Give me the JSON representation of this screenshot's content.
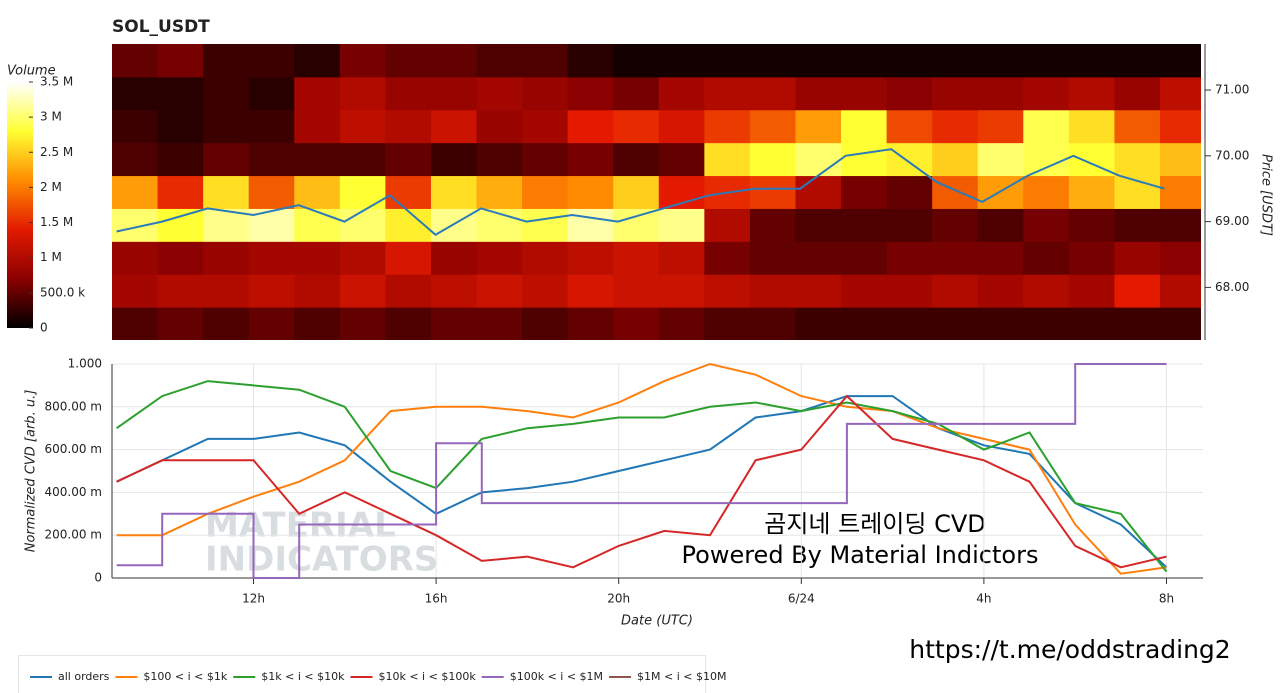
{
  "chart_data": [
    {
      "type": "heatmap",
      "title": "SOL_USDT",
      "colorbar_title": "Volume",
      "y_label": "Price [USDT]",
      "xlim": [
        8.9,
        32.8
      ],
      "ylim": [
        67.2,
        71.7
      ],
      "yticks": [
        {
          "value": 68,
          "label": "68.00"
        },
        {
          "value": 69,
          "label": "69.00"
        },
        {
          "value": 70,
          "label": "70.00"
        },
        {
          "value": 71,
          "label": "71.00"
        }
      ],
      "colorbar_lim": [
        0,
        3.5
      ],
      "colorbar_ticks": [
        0,
        {
          "value": 0.5,
          "label": "500.0 k"
        },
        {
          "value": 1,
          "label": "1 M"
        },
        {
          "value": 1.5,
          "label": "1.5 M"
        },
        {
          "value": 2,
          "label": "2 M"
        },
        {
          "value": 2.5,
          "label": "2.5 M"
        },
        {
          "value": 3,
          "label": "3 M"
        },
        {
          "value": 3.5,
          "label": "3.5 M"
        }
      ],
      "colormap": [
        "#000000",
        "#8b0000",
        "#e31a00",
        "#ff8c00",
        "#ffff33",
        "#ffffff"
      ],
      "x_bins": [
        8.9,
        9.9,
        10.9,
        11.9,
        12.9,
        13.9,
        14.9,
        15.9,
        16.9,
        17.9,
        18.9,
        19.9,
        20.9,
        21.9,
        22.9,
        23.9,
        24.9,
        25.9,
        26.9,
        27.9,
        28.9,
        29.9,
        30.9,
        31.9,
        32.8
      ],
      "y_bins": [
        67.2,
        67.7,
        68.2,
        68.7,
        69.2,
        69.7,
        70.2,
        70.7,
        71.2,
        71.7
      ],
      "values": [
        [
          0.4,
          0.5,
          0.4,
          0.5,
          0.4,
          0.5,
          0.4,
          0.5,
          0.5,
          0.4,
          0.5,
          0.6,
          0.5,
          0.4,
          0.4,
          0.3,
          0.3,
          0.3,
          0.3,
          0.3,
          0.3,
          0.3,
          0.3,
          0.3
        ],
        [
          0.9,
          1.0,
          1.0,
          1.1,
          1.0,
          1.2,
          1.0,
          1.1,
          1.2,
          1.1,
          1.3,
          1.2,
          1.2,
          1.1,
          1.0,
          1.0,
          0.9,
          0.9,
          1.0,
          0.9,
          1.0,
          0.9,
          1.4,
          1.0
        ],
        [
          0.8,
          0.7,
          0.8,
          0.9,
          0.9,
          1.0,
          1.3,
          0.8,
          0.9,
          1.0,
          1.1,
          1.2,
          1.1,
          0.6,
          0.5,
          0.5,
          0.5,
          0.6,
          0.6,
          0.6,
          0.5,
          0.6,
          0.8,
          0.7
        ],
        [
          3.0,
          2.8,
          3.1,
          3.2,
          2.9,
          3.0,
          2.7,
          3.1,
          3.0,
          2.9,
          3.2,
          3.0,
          3.1,
          1.0,
          0.5,
          0.4,
          0.4,
          0.4,
          0.5,
          0.4,
          0.6,
          0.5,
          0.4,
          0.4
        ],
        [
          2.2,
          1.5,
          2.6,
          1.8,
          2.4,
          2.8,
          1.6,
          2.6,
          2.3,
          2.0,
          2.1,
          2.5,
          1.4,
          1.5,
          1.6,
          1.0,
          0.6,
          0.5,
          1.8,
          2.2,
          2.0,
          2.3,
          2.6,
          2.0
        ],
        [
          0.4,
          0.3,
          0.5,
          0.4,
          0.4,
          0.4,
          0.5,
          0.3,
          0.4,
          0.5,
          0.6,
          0.4,
          0.5,
          2.6,
          2.8,
          3.0,
          2.8,
          2.7,
          2.5,
          3.0,
          2.9,
          2.8,
          2.6,
          2.4
        ],
        [
          0.3,
          0.2,
          0.3,
          0.3,
          0.9,
          1.1,
          1.0,
          1.2,
          0.8,
          0.9,
          1.4,
          1.5,
          1.3,
          1.6,
          1.8,
          2.2,
          2.8,
          1.7,
          1.5,
          1.6,
          2.9,
          2.6,
          1.8,
          1.5
        ],
        [
          0.2,
          0.2,
          0.3,
          0.2,
          0.9,
          1.0,
          0.8,
          0.8,
          0.9,
          0.8,
          0.7,
          0.6,
          0.9,
          1.0,
          1.0,
          0.8,
          0.8,
          0.7,
          0.8,
          0.8,
          0.9,
          1.0,
          0.8,
          1.1
        ],
        [
          0.5,
          0.6,
          0.3,
          0.3,
          0.2,
          0.6,
          0.5,
          0.5,
          0.4,
          0.4,
          0.2,
          0.1,
          0.1,
          0.1,
          0.1,
          0.1,
          0.1,
          0.1,
          0.1,
          0.1,
          0.1,
          0.1,
          0.1,
          0.1
        ]
      ],
      "price_line": {
        "color": "#2b7bba",
        "x": [
          9,
          10,
          11,
          12,
          13,
          14,
          15,
          16,
          17,
          18,
          19,
          20,
          21,
          22,
          23,
          24,
          25,
          26,
          27,
          28,
          29,
          30,
          31,
          32
        ],
        "values": [
          68.85,
          69.0,
          69.2,
          69.1,
          69.25,
          69.0,
          69.4,
          68.8,
          69.2,
          69.0,
          69.1,
          69.0,
          69.2,
          69.4,
          69.5,
          69.5,
          70.0,
          70.1,
          69.6,
          69.3,
          69.7,
          70.0,
          69.7,
          69.5
        ]
      }
    },
    {
      "type": "line",
      "xlabel": "Date (UTC)",
      "ylabel": "Normalized CVD [arb. u.]",
      "grid": true,
      "xlim": [
        8.9,
        32.8
      ],
      "ylim": [
        0,
        1
      ],
      "xticks": [
        {
          "value": 12,
          "label": "12h"
        },
        {
          "value": 16,
          "label": "16h"
        },
        {
          "value": 20,
          "label": "20h"
        },
        {
          "value": 24,
          "label": "6/24"
        },
        {
          "value": 28,
          "label": "4h"
        },
        {
          "value": 32,
          "label": "8h"
        }
      ],
      "yticks": [
        0,
        {
          "value": 0.2,
          "label": "200.00 m"
        },
        {
          "value": 0.4,
          "label": "400.00 m"
        },
        {
          "value": 0.6,
          "label": "600.00 m"
        },
        {
          "value": 0.8,
          "label": "800.00 m"
        },
        {
          "value": 1,
          "label": "1.000"
        }
      ],
      "x": [
        9,
        10,
        11,
        12,
        13,
        14,
        15,
        16,
        17,
        18,
        19,
        20,
        21,
        22,
        23,
        24,
        25,
        26,
        27,
        28,
        29,
        30,
        31,
        32
      ],
      "series": [
        {
          "name": "all orders",
          "color": "#1f77b4",
          "values": [
            0.45,
            0.55,
            0.65,
            0.65,
            0.68,
            0.62,
            0.45,
            0.3,
            0.4,
            0.42,
            0.45,
            0.5,
            0.55,
            0.6,
            0.75,
            0.78,
            0.85,
            0.85,
            0.7,
            0.62,
            0.58,
            0.35,
            0.25,
            0.05
          ]
        },
        {
          "name": "$100 < i < $1k",
          "color": "#ff7f0e",
          "values": [
            0.2,
            0.2,
            0.3,
            0.38,
            0.45,
            0.55,
            0.78,
            0.8,
            0.8,
            0.78,
            0.75,
            0.82,
            0.92,
            1.0,
            0.95,
            0.85,
            0.8,
            0.78,
            0.7,
            0.65,
            0.6,
            0.25,
            0.02,
            0.05
          ]
        },
        {
          "name": "$1k < i < $10k",
          "color": "#2ca02c",
          "values": [
            0.7,
            0.85,
            0.92,
            0.9,
            0.88,
            0.8,
            0.5,
            0.42,
            0.65,
            0.7,
            0.72,
            0.75,
            0.75,
            0.8,
            0.82,
            0.78,
            0.82,
            0.78,
            0.72,
            0.6,
            0.68,
            0.35,
            0.3,
            0.03
          ]
        },
        {
          "name": "$10k < i < $100k",
          "color": "#d62728",
          "values": [
            0.45,
            0.55,
            0.55,
            0.55,
            0.3,
            0.4,
            0.3,
            0.2,
            0.08,
            0.1,
            0.05,
            0.15,
            0.22,
            0.2,
            0.55,
            0.6,
            0.85,
            0.65,
            0.6,
            0.55,
            0.45,
            0.15,
            0.05,
            0.1
          ]
        },
        {
          "name": "$100k < i < $1M",
          "color": "#9467bd",
          "shape": "hv",
          "values": [
            0.06,
            0.3,
            0.3,
            0,
            0.25,
            0.25,
            0.25,
            0.63,
            0.35,
            0.35,
            0.35,
            0.35,
            0.35,
            0.35,
            0.35,
            0.35,
            0.72,
            0.72,
            0.72,
            0.72,
            0.72,
            1.0,
            1.0,
            1.0
          ]
        },
        {
          "name": "$1M < i < $10M",
          "color": "#8c564b",
          "values": [
            null,
            null,
            null,
            null,
            null,
            null,
            null,
            null,
            null,
            null,
            null,
            null,
            null,
            null,
            null,
            null,
            null,
            null,
            null,
            null,
            null,
            null,
            null,
            null
          ]
        }
      ],
      "annotations": [
        "곰지네 트레이딩 CVD",
        "Powered By Material Indictors"
      ],
      "watermark": [
        "MATERIAL",
        "INDICATORS"
      ],
      "link": "https://t.me/oddstrading2"
    }
  ]
}
